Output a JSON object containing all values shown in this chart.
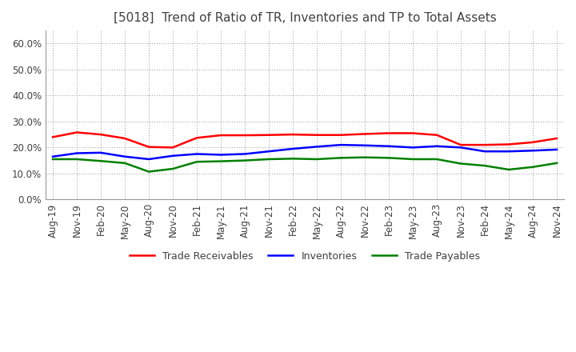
{
  "title": "[5018]  Trend of Ratio of TR, Inventories and TP to Total Assets",
  "ylim": [
    0.0,
    0.65
  ],
  "yticks": [
    0.0,
    0.1,
    0.2,
    0.3,
    0.4,
    0.5,
    0.6
  ],
  "x_labels": [
    "Aug-19",
    "Nov-19",
    "Feb-20",
    "May-20",
    "Aug-20",
    "Nov-20",
    "Feb-21",
    "May-21",
    "Aug-21",
    "Nov-21",
    "Feb-22",
    "May-22",
    "Aug-22",
    "Nov-22",
    "Feb-23",
    "May-23",
    "Aug-23",
    "Nov-23",
    "Feb-24",
    "May-24",
    "Aug-24",
    "Nov-24"
  ],
  "trade_receivables": [
    0.24,
    0.258,
    0.25,
    0.235,
    0.202,
    0.2,
    0.237,
    0.247,
    0.247,
    0.248,
    0.25,
    0.248,
    0.248,
    0.252,
    0.255,
    0.255,
    0.248,
    0.21,
    0.21,
    0.212,
    0.22,
    0.235
  ],
  "inventories": [
    0.165,
    0.178,
    0.18,
    0.165,
    0.155,
    0.168,
    0.175,
    0.172,
    0.175,
    0.185,
    0.195,
    0.203,
    0.21,
    0.208,
    0.205,
    0.2,
    0.205,
    0.2,
    0.185,
    0.185,
    0.188,
    0.192
  ],
  "trade_payables": [
    0.155,
    0.155,
    0.148,
    0.14,
    0.107,
    0.118,
    0.145,
    0.147,
    0.15,
    0.155,
    0.157,
    0.155,
    0.16,
    0.162,
    0.16,
    0.155,
    0.155,
    0.138,
    0.13,
    0.115,
    0.125,
    0.14
  ],
  "tr_color": "#ff0000",
  "inv_color": "#0000ff",
  "tp_color": "#008000",
  "background_color": "#ffffff",
  "grid_color": "#aaaaaa",
  "title_color": "#404040",
  "title_fontsize": 11,
  "tick_fontsize": 8.5,
  "legend_fontsize": 9,
  "linewidth": 1.8
}
